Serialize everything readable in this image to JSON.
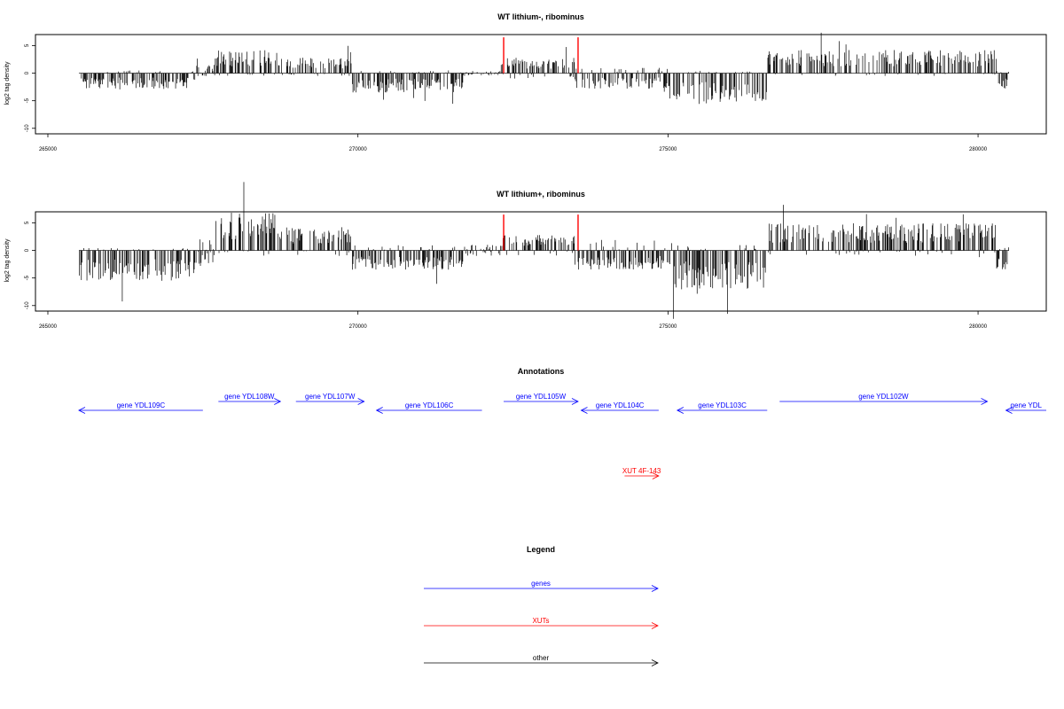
{
  "panels": [
    {
      "title": "WT lithium-, ribominus",
      "ylabel": "log2 tag density",
      "x_ticks": [
        265000,
        270000,
        275000,
        280000
      ],
      "y_ticks": [
        "5",
        "0",
        "-5",
        "-10"
      ],
      "xlim": [
        264800,
        281100
      ],
      "ylim": [
        -11,
        7
      ]
    },
    {
      "title": "WT lithium+, ribominus",
      "ylabel": "log2 tag density",
      "x_ticks": [
        265000,
        270000,
        275000,
        280000
      ],
      "y_ticks": [
        "5",
        "0",
        "-5",
        "-10"
      ],
      "xlim": [
        264800,
        281100
      ],
      "ylim": [
        -11,
        7
      ]
    }
  ],
  "annotations": {
    "title": "Annotations",
    "genes": [
      {
        "label": "gene YDL109C",
        "strand": "-",
        "color": "#0000ff"
      },
      {
        "label": "gene YDL108W",
        "strand": "+",
        "color": "#0000ff"
      },
      {
        "label": "gene YDL107W",
        "strand": "+",
        "color": "#0000ff"
      },
      {
        "label": "gene YDL106C",
        "strand": "-",
        "color": "#0000ff"
      },
      {
        "label": "gene YDL105W",
        "strand": "+",
        "color": "#0000ff"
      },
      {
        "label": "gene YDL104C",
        "strand": "-",
        "color": "#0000ff"
      },
      {
        "label": "gene YDL103C",
        "strand": "-",
        "color": "#0000ff"
      },
      {
        "label": "gene YDL102W",
        "strand": "+",
        "color": "#0000ff"
      },
      {
        "label": "gene YDL",
        "strand": "-",
        "color": "#0000ff"
      }
    ],
    "xuts": [
      {
        "label": "XUT 4F-143",
        "strand": "+",
        "color": "#ff0000"
      }
    ]
  },
  "legend": {
    "title": "Legend",
    "items": [
      {
        "label": "genes",
        "color": "#0000ff"
      },
      {
        "label": "XUTs",
        "color": "#ff0000"
      },
      {
        "label": "other",
        "color": "#000000"
      }
    ]
  },
  "chart_data": {
    "type": "bar",
    "x_domain": [
      265500,
      280500
    ],
    "highlight_color": "#ff0000",
    "highlight_positions": [
      272350,
      273550
    ],
    "segments": [
      {
        "start": 265500,
        "end": 267400,
        "sign": -1,
        "amp_neg_lithium": 2,
        "amp_pos_lithium": 0.5,
        "amp_neg_lithiumplus": 4,
        "amp_pos_lithiumplus": 0.5
      },
      {
        "start": 267400,
        "end": 267700,
        "sign": 0,
        "amp_neg_lithium": 0.5,
        "amp_pos_lithium": 1.5,
        "amp_neg_lithiumplus": 3,
        "amp_pos_lithiumplus": 2
      },
      {
        "start": 267700,
        "end": 268700,
        "sign": 1,
        "amp_neg_lithium": 0.5,
        "amp_pos_lithium": 3,
        "amp_neg_lithiumplus": 1,
        "amp_pos_lithiumplus": 5
      },
      {
        "start": 268700,
        "end": 269900,
        "sign": 1,
        "amp_neg_lithium": 0.5,
        "amp_pos_lithium": 2,
        "amp_neg_lithiumplus": 1,
        "amp_pos_lithiumplus": 3
      },
      {
        "start": 269900,
        "end": 271700,
        "sign": -1,
        "amp_neg_lithium": 2.5,
        "amp_pos_lithium": 0.5,
        "amp_neg_lithiumplus": 2.5,
        "amp_pos_lithiumplus": 1
      },
      {
        "start": 271700,
        "end": 272300,
        "sign": 0,
        "amp_neg_lithium": 0.5,
        "amp_pos_lithium": 0.5,
        "amp_neg_lithiumplus": 1,
        "amp_pos_lithiumplus": 1
      },
      {
        "start": 272300,
        "end": 273500,
        "sign": 1,
        "amp_neg_lithium": 1,
        "amp_pos_lithium": 2,
        "amp_neg_lithiumplus": 1,
        "amp_pos_lithiumplus": 2
      },
      {
        "start": 273500,
        "end": 275000,
        "sign": -1,
        "amp_neg_lithium": 2,
        "amp_pos_lithium": 1,
        "amp_neg_lithiumplus": 2.5,
        "amp_pos_lithiumplus": 2
      },
      {
        "start": 275000,
        "end": 276600,
        "sign": -1,
        "amp_neg_lithium": 4,
        "amp_pos_lithium": 0.3,
        "amp_neg_lithiumplus": 5,
        "amp_pos_lithiumplus": 1
      },
      {
        "start": 276600,
        "end": 280300,
        "sign": 1,
        "amp_neg_lithium": 0.5,
        "amp_pos_lithium": 3,
        "amp_neg_lithiumplus": 1,
        "amp_pos_lithiumplus": 3.5
      },
      {
        "start": 280300,
        "end": 280500,
        "sign": -1,
        "amp_neg_lithium": 2,
        "amp_pos_lithium": 0.5,
        "amp_neg_lithiumplus": 2.5,
        "amp_pos_lithiumplus": 1
      }
    ],
    "gene_extents": [
      [
        265500,
        267500
      ],
      [
        267750,
        268750
      ],
      [
        269000,
        270100
      ],
      [
        270300,
        272000
      ],
      [
        272350,
        273550
      ],
      [
        273600,
        274850
      ],
      [
        275150,
        276600
      ],
      [
        276800,
        280150
      ],
      [
        280450,
        281100
      ]
    ],
    "xut_extents": [
      [
        274300,
        274850
      ]
    ]
  }
}
